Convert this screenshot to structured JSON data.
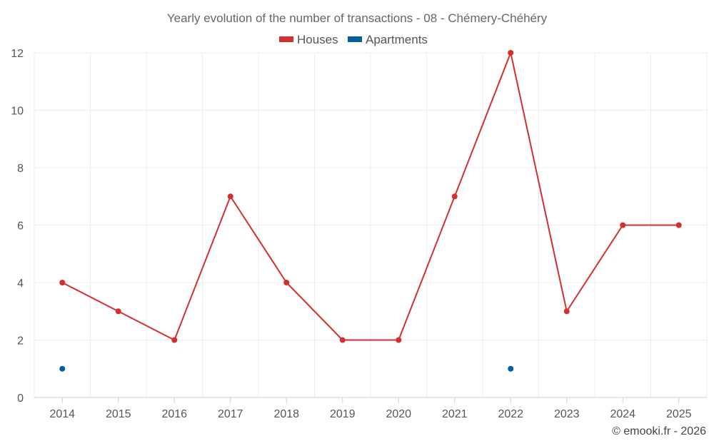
{
  "chart_data": {
    "type": "line",
    "title": "Yearly evolution of the number of transactions - 08 - Chémery-Chéhéry",
    "categories": [
      "2014",
      "2015",
      "2016",
      "2017",
      "2018",
      "2019",
      "2020",
      "2021",
      "2022",
      "2023",
      "2024",
      "2025"
    ],
    "series": [
      {
        "name": "Houses",
        "color": "#d32f2f",
        "values": [
          4,
          3,
          2,
          7,
          4,
          2,
          2,
          7,
          12,
          3,
          6,
          6
        ],
        "line": true
      },
      {
        "name": "Apartments",
        "color": "#00639f",
        "values": [
          1,
          null,
          null,
          null,
          null,
          null,
          null,
          null,
          1,
          null,
          null,
          null
        ],
        "line": false
      }
    ],
    "y_ticks": [
      "0",
      "2",
      "4",
      "6",
      "8",
      "10",
      "12"
    ],
    "ylim": [
      0,
      12
    ],
    "grid": true,
    "legend_position": "top-center"
  },
  "credit": "© emooki.fr - 2026"
}
